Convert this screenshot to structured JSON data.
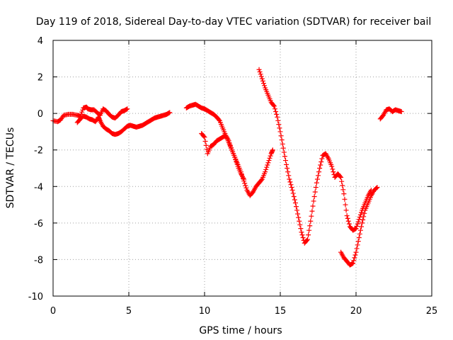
{
  "chart_data": {
    "type": "scatter",
    "title": "Day 119 of 2018, Sidereal Day-to-day VTEC variation (SDTVAR) for receiver bail",
    "xlabel": "GPS time / hours",
    "ylabel": "SDTVAR / TECUs",
    "xlim": [
      0,
      25
    ],
    "ylim": [
      -10,
      4
    ],
    "x_ticks": [
      0,
      5,
      10,
      15,
      20,
      25
    ],
    "y_ticks": [
      -10,
      -8,
      -6,
      -4,
      -2,
      0,
      2,
      4
    ],
    "x_tick_labels": [
      "0",
      "5",
      "10",
      "15",
      "20",
      "25"
    ],
    "y_tick_labels": [
      "-10",
      "-8",
      "-6",
      "-4",
      "-2",
      "0",
      "2",
      "4"
    ],
    "grid": true,
    "marker": "plus",
    "color": "#ff0000",
    "series": [
      {
        "points": [
          [
            0.0,
            -0.4
          ],
          [
            0.3,
            -0.45
          ],
          [
            0.5,
            -0.35
          ],
          [
            0.7,
            -0.1
          ],
          [
            1.0,
            -0.05
          ],
          [
            1.3,
            -0.05
          ],
          [
            1.6,
            -0.1
          ],
          [
            1.8,
            -0.15
          ],
          [
            2.0,
            0.3
          ],
          [
            2.2,
            0.35
          ],
          [
            2.3,
            0.25
          ],
          [
            2.5,
            0.2
          ],
          [
            2.7,
            0.2
          ],
          [
            2.9,
            0.05
          ],
          [
            3.1,
            -0.1
          ],
          [
            3.3,
            0.25
          ],
          [
            3.5,
            0.15
          ],
          [
            3.7,
            -0.05
          ],
          [
            3.9,
            -0.2
          ],
          [
            4.1,
            -0.25
          ],
          [
            4.3,
            -0.1
          ],
          [
            4.5,
            0.1
          ],
          [
            4.7,
            0.15
          ],
          [
            4.9,
            0.25
          ],
          [
            1.6,
            -0.5
          ],
          [
            1.8,
            -0.3
          ],
          [
            2.0,
            -0.15
          ],
          [
            2.2,
            -0.2
          ],
          [
            2.4,
            -0.3
          ],
          [
            2.6,
            -0.35
          ],
          [
            2.8,
            -0.45
          ],
          [
            3.0,
            -0.2
          ],
          [
            3.1,
            -0.4
          ],
          [
            3.3,
            -0.7
          ],
          [
            3.5,
            -0.85
          ],
          [
            3.7,
            -0.95
          ],
          [
            3.9,
            -1.1
          ],
          [
            4.1,
            -1.15
          ],
          [
            4.3,
            -1.1
          ],
          [
            4.5,
            -1.0
          ],
          [
            4.7,
            -0.85
          ],
          [
            4.9,
            -0.7
          ],
          [
            5.1,
            -0.65
          ],
          [
            5.3,
            -0.7
          ],
          [
            5.5,
            -0.75
          ],
          [
            5.7,
            -0.7
          ],
          [
            5.9,
            -0.65
          ],
          [
            6.1,
            -0.55
          ],
          [
            6.3,
            -0.45
          ],
          [
            6.5,
            -0.35
          ],
          [
            6.7,
            -0.25
          ],
          [
            6.9,
            -0.2
          ],
          [
            7.1,
            -0.15
          ],
          [
            7.3,
            -0.1
          ],
          [
            7.5,
            -0.05
          ],
          [
            7.7,
            0.05
          ]
        ]
      },
      {
        "points": [
          [
            8.8,
            0.3
          ],
          [
            9.0,
            0.4
          ],
          [
            9.2,
            0.45
          ],
          [
            9.4,
            0.5
          ],
          [
            9.6,
            0.4
          ],
          [
            9.8,
            0.3
          ],
          [
            10.0,
            0.25
          ],
          [
            10.2,
            0.15
          ],
          [
            10.4,
            0.05
          ],
          [
            10.6,
            -0.05
          ],
          [
            10.8,
            -0.2
          ],
          [
            11.0,
            -0.4
          ],
          [
            11.2,
            -0.8
          ],
          [
            11.4,
            -1.2
          ],
          [
            11.6,
            -1.6
          ],
          [
            11.8,
            -2.0
          ],
          [
            12.0,
            -2.4
          ],
          [
            12.2,
            -2.8
          ],
          [
            12.4,
            -3.2
          ],
          [
            12.6,
            -3.7
          ],
          [
            12.8,
            -4.2
          ],
          [
            13.0,
            -4.5
          ],
          [
            13.2,
            -4.3
          ],
          [
            13.4,
            -4.0
          ],
          [
            13.6,
            -3.8
          ],
          [
            13.8,
            -3.6
          ],
          [
            14.0,
            -3.2
          ],
          [
            14.2,
            -2.7
          ],
          [
            14.4,
            -2.2
          ],
          [
            14.5,
            -2.0
          ],
          [
            9.8,
            -1.1
          ],
          [
            10.0,
            -1.3
          ],
          [
            10.2,
            -2.2
          ],
          [
            10.4,
            -1.8
          ],
          [
            10.6,
            -1.7
          ],
          [
            10.8,
            -1.5
          ],
          [
            11.0,
            -1.4
          ],
          [
            11.2,
            -1.3
          ],
          [
            11.4,
            -1.2
          ],
          [
            11.6,
            -1.5
          ],
          [
            11.8,
            -2.0
          ],
          [
            12.0,
            -2.4
          ],
          [
            12.2,
            -2.9
          ],
          [
            12.4,
            -3.3
          ],
          [
            12.6,
            -3.6
          ]
        ]
      },
      {
        "points": [
          [
            13.6,
            2.4
          ],
          [
            13.8,
            1.9
          ],
          [
            14.0,
            1.4
          ],
          [
            14.2,
            1.0
          ],
          [
            14.4,
            0.6
          ],
          [
            14.6,
            0.4
          ],
          [
            14.8,
            -0.2
          ],
          [
            15.0,
            -1.0
          ],
          [
            15.2,
            -1.9
          ],
          [
            15.4,
            -2.8
          ],
          [
            15.6,
            -3.6
          ],
          [
            15.8,
            -4.2
          ],
          [
            16.0,
            -4.9
          ],
          [
            16.2,
            -5.7
          ],
          [
            16.4,
            -6.5
          ],
          [
            16.6,
            -7.1
          ],
          [
            16.8,
            -6.9
          ],
          [
            17.0,
            -5.9
          ],
          [
            17.2,
            -4.8
          ],
          [
            17.4,
            -3.8
          ],
          [
            17.6,
            -3.0
          ],
          [
            17.8,
            -2.3
          ],
          [
            18.0,
            -2.2
          ],
          [
            18.2,
            -2.5
          ],
          [
            18.4,
            -2.9
          ],
          [
            18.6,
            -3.5
          ],
          [
            18.8,
            -3.3
          ],
          [
            19.0,
            -3.5
          ],
          [
            19.2,
            -4.4
          ],
          [
            19.4,
            -5.6
          ],
          [
            19.6,
            -6.2
          ],
          [
            19.8,
            -6.4
          ],
          [
            20.0,
            -6.3
          ],
          [
            20.2,
            -5.8
          ],
          [
            20.4,
            -5.3
          ],
          [
            20.6,
            -4.9
          ],
          [
            20.8,
            -4.5
          ],
          [
            21.0,
            -4.2
          ],
          [
            19.0,
            -7.6
          ],
          [
            19.2,
            -7.9
          ],
          [
            19.4,
            -8.1
          ],
          [
            19.6,
            -8.3
          ],
          [
            19.8,
            -8.2
          ],
          [
            20.0,
            -7.6
          ],
          [
            20.2,
            -6.8
          ],
          [
            20.4,
            -6.0
          ],
          [
            20.6,
            -5.3
          ],
          [
            20.8,
            -4.9
          ],
          [
            21.0,
            -4.5
          ],
          [
            21.2,
            -4.2
          ],
          [
            21.4,
            -4.05
          ]
        ]
      },
      {
        "points": [
          [
            21.6,
            -0.3
          ],
          [
            21.8,
            -0.1
          ],
          [
            22.0,
            0.2
          ],
          [
            22.2,
            0.25
          ],
          [
            22.4,
            0.1
          ],
          [
            22.6,
            0.2
          ],
          [
            22.8,
            0.15
          ],
          [
            23.0,
            0.1
          ]
        ]
      }
    ]
  }
}
